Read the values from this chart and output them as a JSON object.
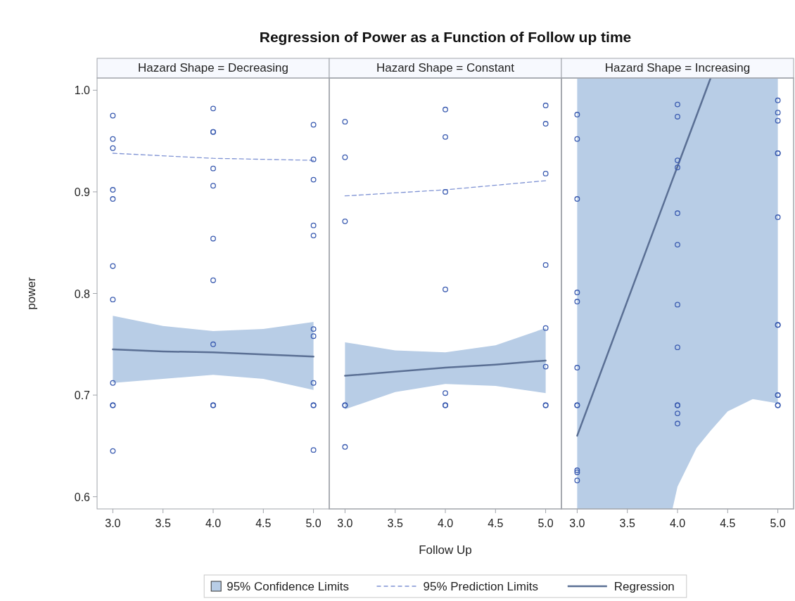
{
  "chart_data": [
    {
      "type": "scatter",
      "title": "Regression of Power as a Function of Follow up time",
      "subtitle": "Hazard Shape = Decreasing",
      "ylabel": "power",
      "annotations": [
        "95% Confidence Limits"
      ],
      "xlim": [
        2.85,
        5.15
      ],
      "ylim": [
        0.588,
        1.012
      ],
      "xticks": [
        {
          "value": 3,
          "label": "3.0"
        },
        {
          "value": 3.5,
          "label": "3.5"
        },
        {
          "value": 4,
          "label": "4.0"
        },
        {
          "value": 4.5,
          "label": "4.5"
        },
        {
          "value": 5,
          "label": "5.0"
        }
      ],
      "yticks": [
        {
          "value": 0.6,
          "label": "0.6"
        },
        {
          "value": 0.7,
          "label": "0.7"
        },
        {
          "value": 0.8,
          "label": "0.8"
        },
        {
          "value": 0.9,
          "label": "0.9"
        },
        {
          "value": 1.0,
          "label": "1.0"
        }
      ],
      "legend": "bottom",
      "series": [
        {
          "type": "line",
          "name": "95% Prediction Limits",
          "color": "#7f93d4",
          "line_style": "dashed",
          "x": [
            3,
            4,
            5
          ],
          "values": [
            0.938,
            0.933,
            0.931
          ]
        },
        {
          "type": "line",
          "name": "Regression",
          "color": "#5a6f94",
          "line_style": "solid",
          "x": [
            3,
            3.5,
            4,
            4.5,
            5
          ],
          "values": [
            0.745,
            0.743,
            0.742,
            0.74,
            0.738
          ],
          "lower": [
            0.712,
            0.716,
            0.72,
            0.716,
            0.705
          ],
          "upper": [
            0.778,
            0.768,
            0.763,
            0.765,
            0.772
          ]
        },
        {
          "marker": "circle",
          "color": "#3a5bb0",
          "x": [
            3,
            3,
            3,
            3,
            3,
            3,
            3,
            3,
            3,
            3,
            3,
            4,
            4,
            4,
            4,
            4,
            4,
            4,
            4,
            4,
            4,
            5,
            5,
            5,
            5,
            5,
            5,
            5,
            5,
            5,
            5,
            5
          ],
          "values": [
            0.975,
            0.952,
            0.943,
            0.902,
            0.893,
            0.827,
            0.794,
            0.712,
            0.69,
            0.69,
            0.645,
            0.982,
            0.959,
            0.959,
            0.923,
            0.906,
            0.854,
            0.813,
            0.75,
            0.69,
            0.69,
            0.966,
            0.932,
            0.912,
            0.867,
            0.857,
            0.765,
            0.758,
            0.712,
            0.69,
            0.69,
            0.646
          ]
        }
      ]
    },
    {
      "type": "scatter",
      "subtitle": "Hazard Shape = Constant",
      "xlabel": "Follow Up",
      "xlim": [
        2.85,
        5.15
      ],
      "ylim": [
        0.588,
        1.012
      ],
      "xticks": [
        {
          "value": 3,
          "label": "3.0"
        },
        {
          "value": 3.5,
          "label": "3.5"
        },
        {
          "value": 4,
          "label": "4.0"
        },
        {
          "value": 4.5,
          "label": "4.5"
        },
        {
          "value": 5,
          "label": "5.0"
        }
      ],
      "tick_labels": "x",
      "series": [
        {
          "type": "line",
          "color": "#7f93d4",
          "line_style": "dashed",
          "x": [
            3,
            4,
            5
          ],
          "values": [
            0.896,
            0.902,
            0.911
          ]
        },
        {
          "type": "line",
          "color": "#5a6f94",
          "line_style": "solid",
          "x": [
            3,
            3.5,
            4,
            4.5,
            5
          ],
          "values": [
            0.719,
            0.723,
            0.727,
            0.73,
            0.734
          ],
          "lower": [
            0.686,
            0.703,
            0.711,
            0.709,
            0.702
          ],
          "upper": [
            0.752,
            0.744,
            0.742,
            0.749,
            0.766
          ]
        },
        {
          "marker": "circle",
          "color": "#3a5bb0",
          "x": [
            3,
            3,
            3,
            3,
            3,
            3,
            4,
            4,
            4,
            4,
            4,
            4,
            4,
            5,
            5,
            5,
            5,
            5,
            5,
            5,
            5
          ],
          "values": [
            0.969,
            0.934,
            0.871,
            0.69,
            0.69,
            0.649,
            0.981,
            0.954,
            0.9,
            0.804,
            0.702,
            0.69,
            0.69,
            0.985,
            0.967,
            0.918,
            0.828,
            0.766,
            0.728,
            0.69,
            0.69
          ]
        }
      ]
    },
    {
      "type": "scatter",
      "subtitle": "Hazard Shape = Increasing",
      "xlim": [
        2.85,
        5.15
      ],
      "ylim": [
        0.588,
        1.012
      ],
      "xticks": [
        {
          "value": 3,
          "label": "3.0"
        },
        {
          "value": 3.5,
          "label": "3.5"
        },
        {
          "value": 4,
          "label": "4.0"
        },
        {
          "value": 4.5,
          "label": "4.5"
        },
        {
          "value": 5,
          "label": "5.0"
        }
      ],
      "tick_labels": "x",
      "series": [
        {
          "type": "line",
          "color": "#5a6f94",
          "line_style": "solid",
          "x": [
            3,
            3.95,
            4,
            4.19,
            4.33,
            4.5,
            4.75,
            5
          ],
          "values": [
            0.66,
            0.912,
            0.925,
            0.975,
            1.012,
            null,
            null,
            null
          ],
          "lower": [
            0.588,
            0.588,
            0.61,
            0.648,
            0.665,
            0.684,
            0.696,
            0.692
          ],
          "upper": [
            1.012,
            1.012,
            1.012,
            1.012,
            1.012,
            1.012,
            1.012,
            1.012
          ]
        },
        {
          "marker": "circle",
          "color": "#3a5bb0",
          "x": [
            3,
            3,
            3,
            3,
            3,
            3,
            3,
            3,
            3,
            3,
            3,
            4,
            4,
            4,
            4,
            4,
            4,
            4,
            4,
            4,
            4,
            4,
            4,
            5,
            5,
            5,
            5,
            5,
            5,
            5,
            5,
            5,
            5,
            5,
            5
          ],
          "values": [
            0.976,
            0.952,
            0.893,
            0.801,
            0.792,
            0.727,
            0.69,
            0.69,
            0.626,
            0.624,
            0.616,
            0.986,
            0.974,
            0.931,
            0.924,
            0.879,
            0.848,
            0.789,
            0.747,
            0.69,
            0.69,
            0.682,
            0.672,
            0.99,
            0.978,
            0.97,
            0.938,
            0.938,
            0.875,
            0.769,
            0.769,
            0.7,
            0.7,
            0.69,
            0.69
          ]
        }
      ]
    }
  ]
}
